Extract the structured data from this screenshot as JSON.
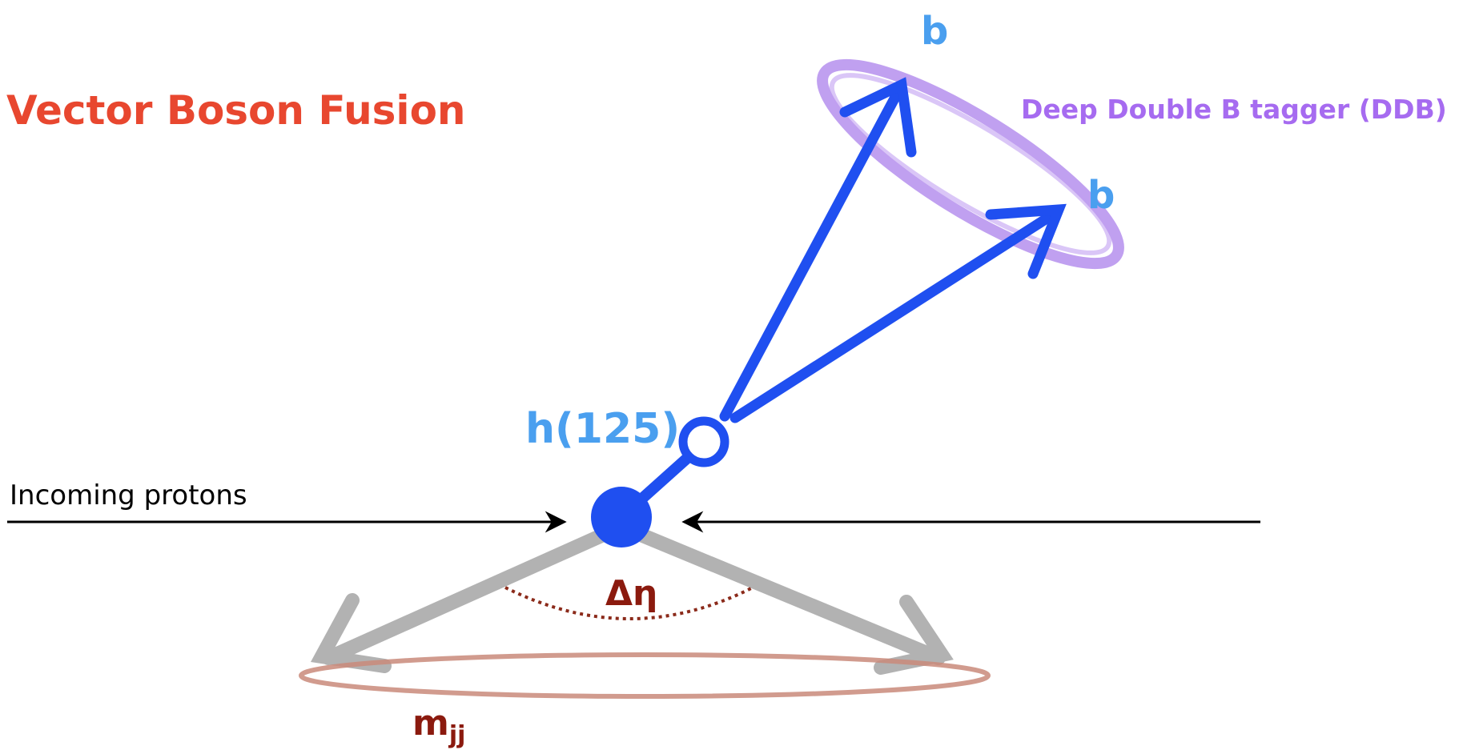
{
  "title": "Vector Boson Fusion",
  "labels": {
    "b_top": "b",
    "b_right": "b",
    "tagger": "Deep Double B tagger (DDB)",
    "higgs": "h(125)",
    "protons": "Incoming protons",
    "delta_eta": "Δη",
    "mjj": {
      "base": "m",
      "sub": "jj"
    }
  }
}
